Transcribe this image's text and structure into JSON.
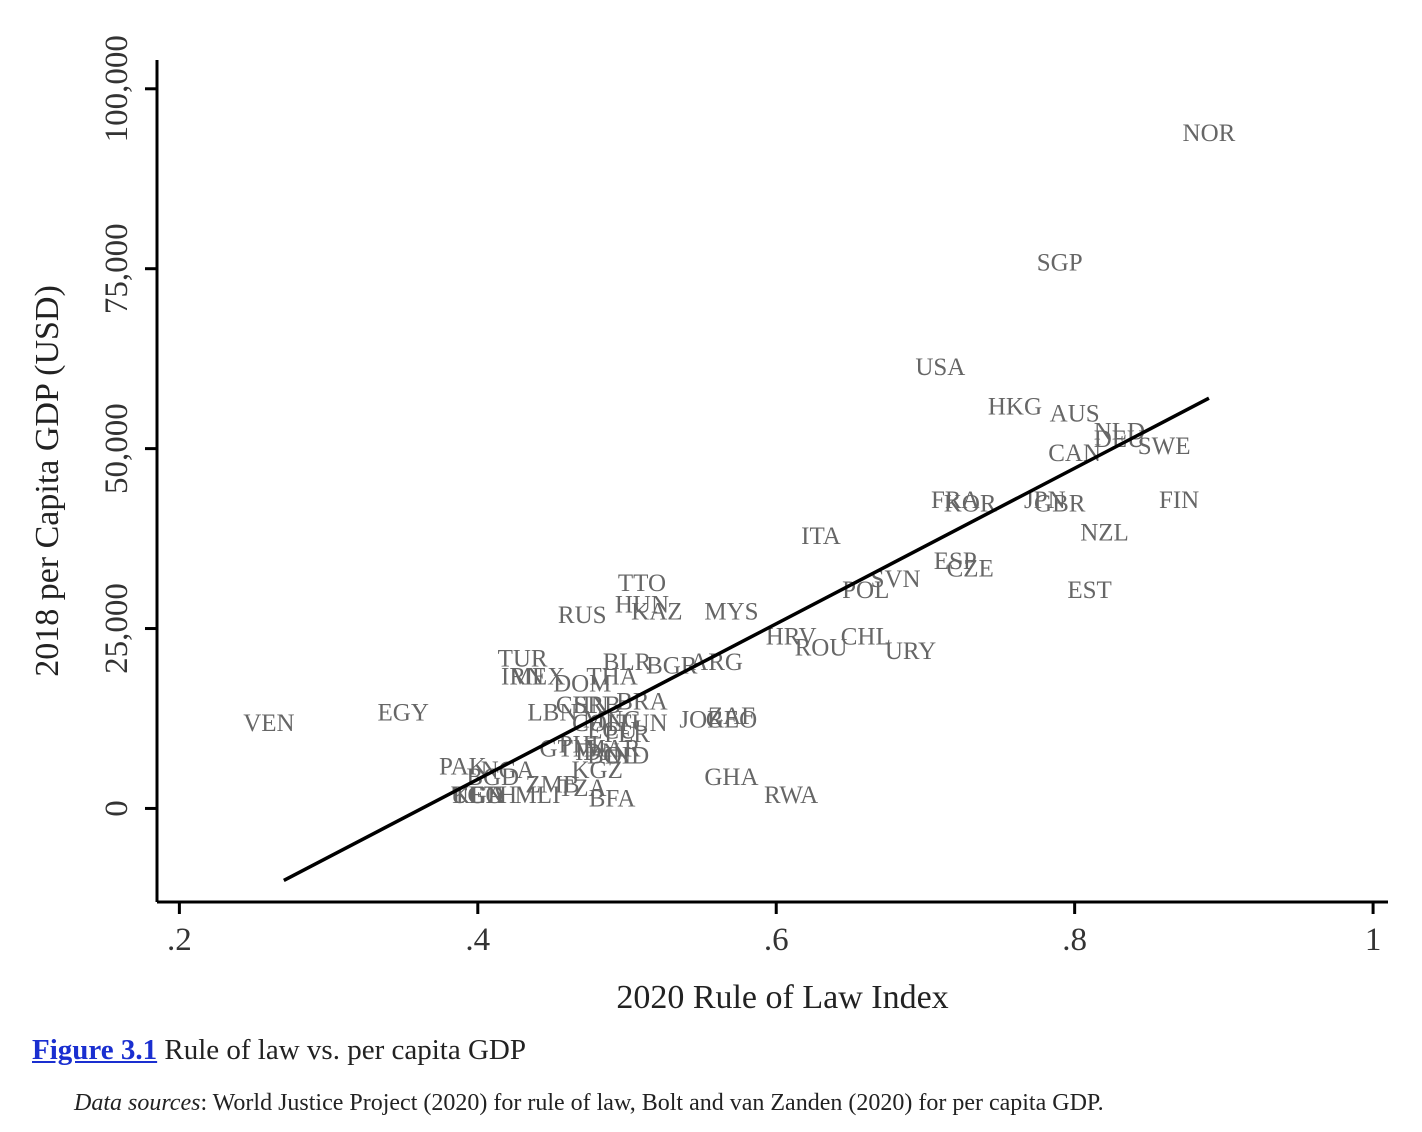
{
  "chart_data": {
    "type": "scatter",
    "xlabel": "2020 Rule of Law Index",
    "ylabel": "2018 per Capita GDP (USD)",
    "xlim": [
      0.185,
      1.01
    ],
    "ylim": [
      -13000,
      104000
    ],
    "x_ticks": [
      {
        "value": 0.2,
        "label": ".2"
      },
      {
        "value": 0.4,
        "label": ".4"
      },
      {
        "value": 0.6,
        "label": ".6"
      },
      {
        "value": 0.8,
        "label": ".8"
      },
      {
        "value": 1.0,
        "label": "1"
      }
    ],
    "y_ticks": [
      {
        "value": 0,
        "label": "0"
      },
      {
        "value": 25000,
        "label": "25,000"
      },
      {
        "value": 50000,
        "label": "50,000"
      },
      {
        "value": 75000,
        "label": "75,000"
      },
      {
        "value": 100000,
        "label": "100,000"
      }
    ],
    "fit_line": {
      "x": [
        0.27,
        0.89
      ],
      "y": [
        -10000,
        57000
      ]
    },
    "points": [
      {
        "label": "NOR",
        "x": 0.89,
        "y": 94000
      },
      {
        "label": "SGP",
        "x": 0.79,
        "y": 76000
      },
      {
        "label": "USA",
        "x": 0.71,
        "y": 61500
      },
      {
        "label": "HKG",
        "x": 0.76,
        "y": 56000
      },
      {
        "label": "AUS",
        "x": 0.8,
        "y": 55000
      },
      {
        "label": "NLD",
        "x": 0.83,
        "y": 52500
      },
      {
        "label": "DEU",
        "x": 0.83,
        "y": 51500
      },
      {
        "label": "SWE",
        "x": 0.86,
        "y": 50500
      },
      {
        "label": "CAN",
        "x": 0.8,
        "y": 49500
      },
      {
        "label": "FIN",
        "x": 0.87,
        "y": 43000
      },
      {
        "label": "FRA",
        "x": 0.72,
        "y": 43000
      },
      {
        "label": "KOR",
        "x": 0.73,
        "y": 42500
      },
      {
        "label": "JPN",
        "x": 0.78,
        "y": 43000
      },
      {
        "label": "GBR",
        "x": 0.79,
        "y": 42500
      },
      {
        "label": "NZL",
        "x": 0.82,
        "y": 38500
      },
      {
        "label": "ITA",
        "x": 0.63,
        "y": 38000
      },
      {
        "label": "ESP",
        "x": 0.72,
        "y": 34500
      },
      {
        "label": "CZE",
        "x": 0.73,
        "y": 33500
      },
      {
        "label": "SVN",
        "x": 0.68,
        "y": 32000
      },
      {
        "label": "POL",
        "x": 0.66,
        "y": 30500
      },
      {
        "label": "EST",
        "x": 0.81,
        "y": 30500
      },
      {
        "label": "TTO",
        "x": 0.51,
        "y": 31500
      },
      {
        "label": "HUN",
        "x": 0.51,
        "y": 28500
      },
      {
        "label": "KAZ",
        "x": 0.52,
        "y": 27500
      },
      {
        "label": "MYS",
        "x": 0.57,
        "y": 27500
      },
      {
        "label": "RUS",
        "x": 0.47,
        "y": 27000
      },
      {
        "label": "HRV",
        "x": 0.61,
        "y": 24000
      },
      {
        "label": "CHL",
        "x": 0.66,
        "y": 24000
      },
      {
        "label": "ROU",
        "x": 0.63,
        "y": 22500
      },
      {
        "label": "URY",
        "x": 0.69,
        "y": 22000
      },
      {
        "label": "TUR",
        "x": 0.43,
        "y": 21000
      },
      {
        "label": "BLR",
        "x": 0.5,
        "y": 20500
      },
      {
        "label": "BGR",
        "x": 0.53,
        "y": 20000
      },
      {
        "label": "ARG",
        "x": 0.56,
        "y": 20500
      },
      {
        "label": "IRN",
        "x": 0.43,
        "y": 18500
      },
      {
        "label": "MEX",
        "x": 0.44,
        "y": 18500
      },
      {
        "label": "DOM",
        "x": 0.47,
        "y": 17500
      },
      {
        "label": "THA",
        "x": 0.49,
        "y": 18500
      },
      {
        "label": "EGY",
        "x": 0.35,
        "y": 13500
      },
      {
        "label": "VEN",
        "x": 0.26,
        "y": 12000
      },
      {
        "label": "LBN",
        "x": 0.45,
        "y": 13500
      },
      {
        "label": "CHN",
        "x": 0.47,
        "y": 14500
      },
      {
        "label": "SRB",
        "x": 0.48,
        "y": 14500
      },
      {
        "label": "BRA",
        "x": 0.51,
        "y": 15000
      },
      {
        "label": "COL",
        "x": 0.48,
        "y": 12000
      },
      {
        "label": "MNG",
        "x": 0.49,
        "y": 12500
      },
      {
        "label": "TUN",
        "x": 0.51,
        "y": 12000
      },
      {
        "label": "JOR",
        "x": 0.55,
        "y": 12500
      },
      {
        "label": "ZAF",
        "x": 0.57,
        "y": 13000
      },
      {
        "label": "GEO",
        "x": 0.57,
        "y": 12500
      },
      {
        "label": "ECU",
        "x": 0.49,
        "y": 11000
      },
      {
        "label": "PER",
        "x": 0.5,
        "y": 10500
      },
      {
        "label": "GTM",
        "x": 0.46,
        "y": 8500
      },
      {
        "label": "PHL",
        "x": 0.47,
        "y": 9000
      },
      {
        "label": "IDN",
        "x": 0.48,
        "y": 8000
      },
      {
        "label": "MAR",
        "x": 0.49,
        "y": 8500
      },
      {
        "label": "BOL",
        "x": 0.49,
        "y": 7500
      },
      {
        "label": "IND",
        "x": 0.5,
        "y": 7500
      },
      {
        "label": "KGZ",
        "x": 0.48,
        "y": 5500
      },
      {
        "label": "PAK",
        "x": 0.39,
        "y": 6000
      },
      {
        "label": "NGA",
        "x": 0.42,
        "y": 5500
      },
      {
        "label": "BGD",
        "x": 0.41,
        "y": 4500
      },
      {
        "label": "ZMB",
        "x": 0.45,
        "y": 3500
      },
      {
        "label": "TZA",
        "x": 0.47,
        "y": 3000
      },
      {
        "label": "GHA",
        "x": 0.57,
        "y": 4500
      },
      {
        "label": "RWA",
        "x": 0.61,
        "y": 2000
      },
      {
        "label": "BFA",
        "x": 0.49,
        "y": 1500
      },
      {
        "label": "KEN",
        "x": 0.4,
        "y": 2000
      },
      {
        "label": "UGA",
        "x": 0.4,
        "y": 2000
      },
      {
        "label": "TGO",
        "x": 0.4,
        "y": 2000
      },
      {
        "label": "ETH",
        "x": 0.41,
        "y": 2000
      },
      {
        "label": "MLI",
        "x": 0.44,
        "y": 2000
      }
    ]
  },
  "caption": {
    "figure_label": "Figure 3.1",
    "text": " Rule of law vs. per capita GDP"
  },
  "source": {
    "label": "Data sources",
    "text": ": World Justice Project (2020) for rule of law, Bolt and van Zanden (2020) for per capita GDP."
  }
}
